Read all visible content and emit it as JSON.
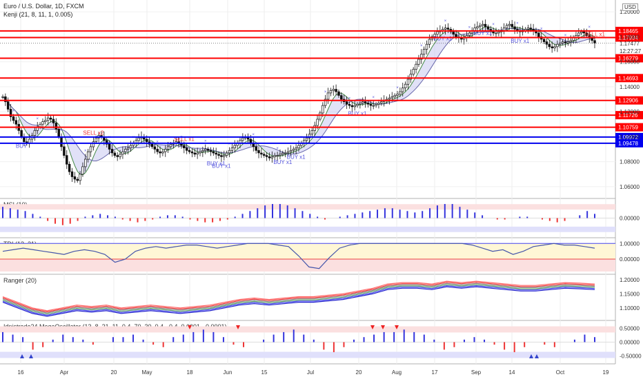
{
  "chart_data": {
    "type": "candlestick",
    "header": {
      "title": "Euro / U.S. Dollar, 1D, FXCM",
      "indicator": "Kenji (21, 8, 11, 1, 0.005)",
      "currency": "USD"
    },
    "x_ticks": [
      "16",
      "Apr",
      "20",
      "May",
      "18",
      "Jun",
      "15",
      "Jul",
      "20",
      "Aug",
      "17",
      "Sep",
      "14",
      "Oct",
      "19"
    ],
    "y_ticks": [
      "1.20000",
      "1.18000",
      "1.16000",
      "1.14000",
      "1.12000",
      "1.10000",
      "1.08000",
      "1.06000"
    ],
    "ylim": [
      1.055,
      1.205
    ],
    "levels": [
      {
        "value": 1.18465,
        "label": "1.18465",
        "color": "#ff0000"
      },
      {
        "value": 1.17934,
        "label": "1.17934",
        "color": "#ff0000"
      },
      {
        "value": 1.16279,
        "label": "1.16279",
        "color": "#ff0000"
      },
      {
        "value": 1.14693,
        "label": "1.14693",
        "color": "#ff0000"
      },
      {
        "value": 1.12906,
        "label": "1.12906",
        "color": "#ff0000"
      },
      {
        "value": 1.11726,
        "label": "1.11726",
        "color": "#ff0000"
      },
      {
        "value": 1.10759,
        "label": "1.10759",
        "color": "#ff0000"
      },
      {
        "value": 1.09972,
        "label": "1.09972",
        "color": "#0000ee"
      },
      {
        "value": 1.09478,
        "label": "1.09478",
        "color": "#0000ee"
      }
    ],
    "current_price": {
      "value": 1.17477,
      "label": "1.17477",
      "countdown": "12:27:27"
    },
    "signals": [
      {
        "text": "BUY",
        "series": 12,
        "color": "#5555dd"
      },
      {
        "text": "SELL x2",
        "series": 62,
        "color": "#ee3333"
      },
      {
        "text": "SELL x1",
        "series": 122,
        "color": "#ee3333"
      },
      {
        "text": "BUY x1",
        "series": 145,
        "color": "#5555dd"
      },
      {
        "text": "BUY x1",
        "series": 148,
        "color": "#5555dd"
      },
      {
        "text": "BUY x1",
        "series": 190,
        "color": "#5555dd"
      },
      {
        "text": "BUY x1",
        "series": 198,
        "color": "#5555dd"
      },
      {
        "text": "BUY x1",
        "series": 240,
        "color": "#5555dd"
      },
      {
        "text": "BUY x1",
        "series": 298,
        "color": "#5555dd"
      },
      {
        "text": "BUY x1",
        "series": 325,
        "color": "#5555dd"
      },
      {
        "text": "BUY x1",
        "series": 350,
        "color": "#5555dd"
      },
      {
        "text": "SELL x1",
        "series": 400,
        "color": "#ee3333"
      }
    ],
    "closes": [
      1.132,
      1.128,
      1.122,
      1.116,
      1.113,
      1.11,
      1.105,
      1.1,
      1.096,
      1.095,
      1.098,
      1.101,
      1.105,
      1.108,
      1.11,
      1.112,
      1.113,
      1.115,
      1.114,
      1.111,
      1.106,
      1.1,
      1.092,
      1.085,
      1.078,
      1.072,
      1.068,
      1.066,
      1.065,
      1.07,
      1.076,
      1.082,
      1.088,
      1.092,
      1.096,
      1.099,
      1.101,
      1.1,
      1.097,
      1.094,
      1.09,
      1.087,
      1.085,
      1.084,
      1.086,
      1.088,
      1.09,
      1.091,
      1.093,
      1.095,
      1.097,
      1.099,
      1.1,
      1.098,
      1.096,
      1.094,
      1.092,
      1.09,
      1.088,
      1.087,
      1.088,
      1.09,
      1.092,
      1.094,
      1.095,
      1.096,
      1.095,
      1.093,
      1.091,
      1.089,
      1.088,
      1.087,
      1.086,
      1.087,
      1.088,
      1.089,
      1.09,
      1.089,
      1.088,
      1.087,
      1.086,
      1.085,
      1.084,
      1.085,
      1.087,
      1.089,
      1.091,
      1.093,
      1.095,
      1.097,
      1.099,
      1.1,
      1.098,
      1.095,
      1.092,
      1.089,
      1.087,
      1.086,
      1.085,
      1.084,
      1.083,
      1.084,
      1.085,
      1.085,
      1.086,
      1.087,
      1.087,
      1.088,
      1.089,
      1.09,
      1.091,
      1.093,
      1.095,
      1.097,
      1.099,
      1.102,
      1.105,
      1.109,
      1.114,
      1.119,
      1.125,
      1.13,
      1.135,
      1.137,
      1.138,
      1.136,
      1.133,
      1.13,
      1.128,
      1.126,
      1.125,
      1.124,
      1.125,
      1.126,
      1.127,
      1.128,
      1.127,
      1.126,
      1.125,
      1.125,
      1.126,
      1.127,
      1.128,
      1.129,
      1.13,
      1.131,
      1.132,
      1.133,
      1.134,
      1.136,
      1.139,
      1.142,
      1.146,
      1.15,
      1.154,
      1.158,
      1.162,
      1.166,
      1.17,
      1.174,
      1.178,
      1.18,
      1.182,
      1.184,
      1.185,
      1.186,
      1.187,
      1.186,
      1.184,
      1.182,
      1.18,
      1.179,
      1.178,
      1.179,
      1.181,
      1.183,
      1.185,
      1.187,
      1.188,
      1.189,
      1.19,
      1.188,
      1.186,
      1.184,
      1.183,
      1.183,
      1.184,
      1.185,
      1.187,
      1.189,
      1.19,
      1.188,
      1.186,
      1.185,
      1.184,
      1.185,
      1.186,
      1.187,
      1.186,
      1.185,
      1.183,
      1.18,
      1.178,
      1.176,
      1.174,
      1.172,
      1.171,
      1.172,
      1.174,
      1.175,
      1.176,
      1.175,
      1.176,
      1.177,
      1.179,
      1.181,
      1.183,
      1.184,
      1.183,
      1.181,
      1.179,
      1.177,
      1.175
    ],
    "panels": [
      {
        "name": "MSI (10)",
        "ticks": [
          "0.00000"
        ],
        "values": [
          0.8,
          0.7,
          0.6,
          0.5,
          0.3,
          0.1,
          -0.2,
          -0.4,
          -0.5,
          -0.4,
          -0.2,
          0.1,
          0.2,
          0.3,
          0.2,
          0.1,
          -0.1,
          -0.2,
          -0.3,
          -0.2,
          -0.1,
          0.1,
          0.2,
          0.2,
          0.1,
          -0.1,
          -0.2,
          -0.3,
          -0.3,
          -0.2,
          -0.1,
          0.1,
          0.3,
          0.5,
          0.7,
          0.9,
          1.0,
          1.0,
          0.9,
          0.7,
          0.5,
          0.3,
          0.1,
          -0.1,
          0.0,
          0.1,
          0.2,
          0.3,
          0.4,
          0.5,
          0.6,
          0.7,
          0.7,
          0.6,
          0.5,
          0.4,
          0.5,
          0.7,
          0.9,
          1.0,
          1.0,
          0.8,
          0.6,
          0.4,
          0.2,
          0.0,
          -0.1,
          -0.1,
          0.0,
          0.1,
          0.1,
          0.0,
          -0.1,
          -0.2,
          -0.3,
          -0.2,
          0.0,
          0.2,
          0.5,
          0.3
        ]
      },
      {
        "name": "TDI (13, 21)",
        "ticks": [
          "1.00000",
          "0.00000"
        ],
        "values": [
          0.5,
          0.6,
          0.7,
          0.6,
          0.5,
          0.4,
          0.3,
          0.5,
          0.6,
          0.5,
          0.3,
          -0.2,
          0.0,
          0.5,
          0.7,
          0.8,
          0.7,
          0.8,
          0.9,
          0.9,
          0.8,
          0.7,
          0.8,
          0.9,
          1.0,
          1.0,
          1.0,
          0.9,
          0.8,
          0.2,
          -0.5,
          -0.6,
          0.1,
          0.7,
          0.9,
          1.0,
          1.0,
          1.0,
          1.0,
          1.0,
          1.0,
          1.0,
          1.0,
          1.0,
          1.0,
          1.0,
          0.9,
          0.7,
          0.5,
          0.6,
          0.3,
          0.5,
          0.8,
          0.9,
          1.0,
          0.9,
          0.9,
          0.8,
          0.7
        ]
      },
      {
        "name": "Ranger (20)",
        "ticks": [
          "1.20000",
          "1.15000",
          "1.10000"
        ],
        "values": [
          1.13,
          1.11,
          1.09,
          1.08,
          1.09,
          1.1,
          1.095,
          1.1,
          1.09,
          1.095,
          1.1,
          1.095,
          1.09,
          1.095,
          1.1,
          1.11,
          1.12,
          1.125,
          1.12,
          1.125,
          1.13,
          1.13,
          1.135,
          1.14,
          1.15,
          1.16,
          1.175,
          1.18,
          1.18,
          1.175,
          1.185,
          1.18,
          1.185,
          1.18,
          1.175,
          1.17,
          1.17,
          1.175,
          1.18,
          1.178,
          1.175
        ]
      },
      {
        "name": "Idnistrade24 MegaOscillator (13, 8, 21, 11, 0.4, 70, 30, 0.4, -0.4, 0.0001, -0.0001)",
        "ticks": [
          "0.50000",
          "0.00000",
          "-0.50000"
        ],
        "values": [
          0.4,
          0.3,
          0.2,
          -0.3,
          -0.2,
          0.1,
          0.3,
          0.2,
          0.1,
          -0.1,
          0.0,
          0.2,
          0.2,
          0.3,
          0.1,
          -0.1,
          -0.2,
          0.2,
          0.3,
          0.4,
          0.5,
          0.4,
          0.2,
          -0.1,
          -0.2,
          0.0,
          0.1,
          0.3,
          0.4,
          0.5,
          0.3,
          0.1,
          -0.3,
          -0.4,
          -0.2,
          0.1,
          0.2,
          0.3,
          0.4,
          0.4,
          0.5,
          0.4,
          0.3,
          0.1,
          -0.3,
          -0.2,
          0.1,
          0.2,
          0.1,
          -0.1,
          -0.3,
          -0.4,
          -0.2,
          0.0,
          -0.1,
          -0.2,
          0.0,
          0.1,
          0.3,
          0.2
        ]
      }
    ]
  }
}
